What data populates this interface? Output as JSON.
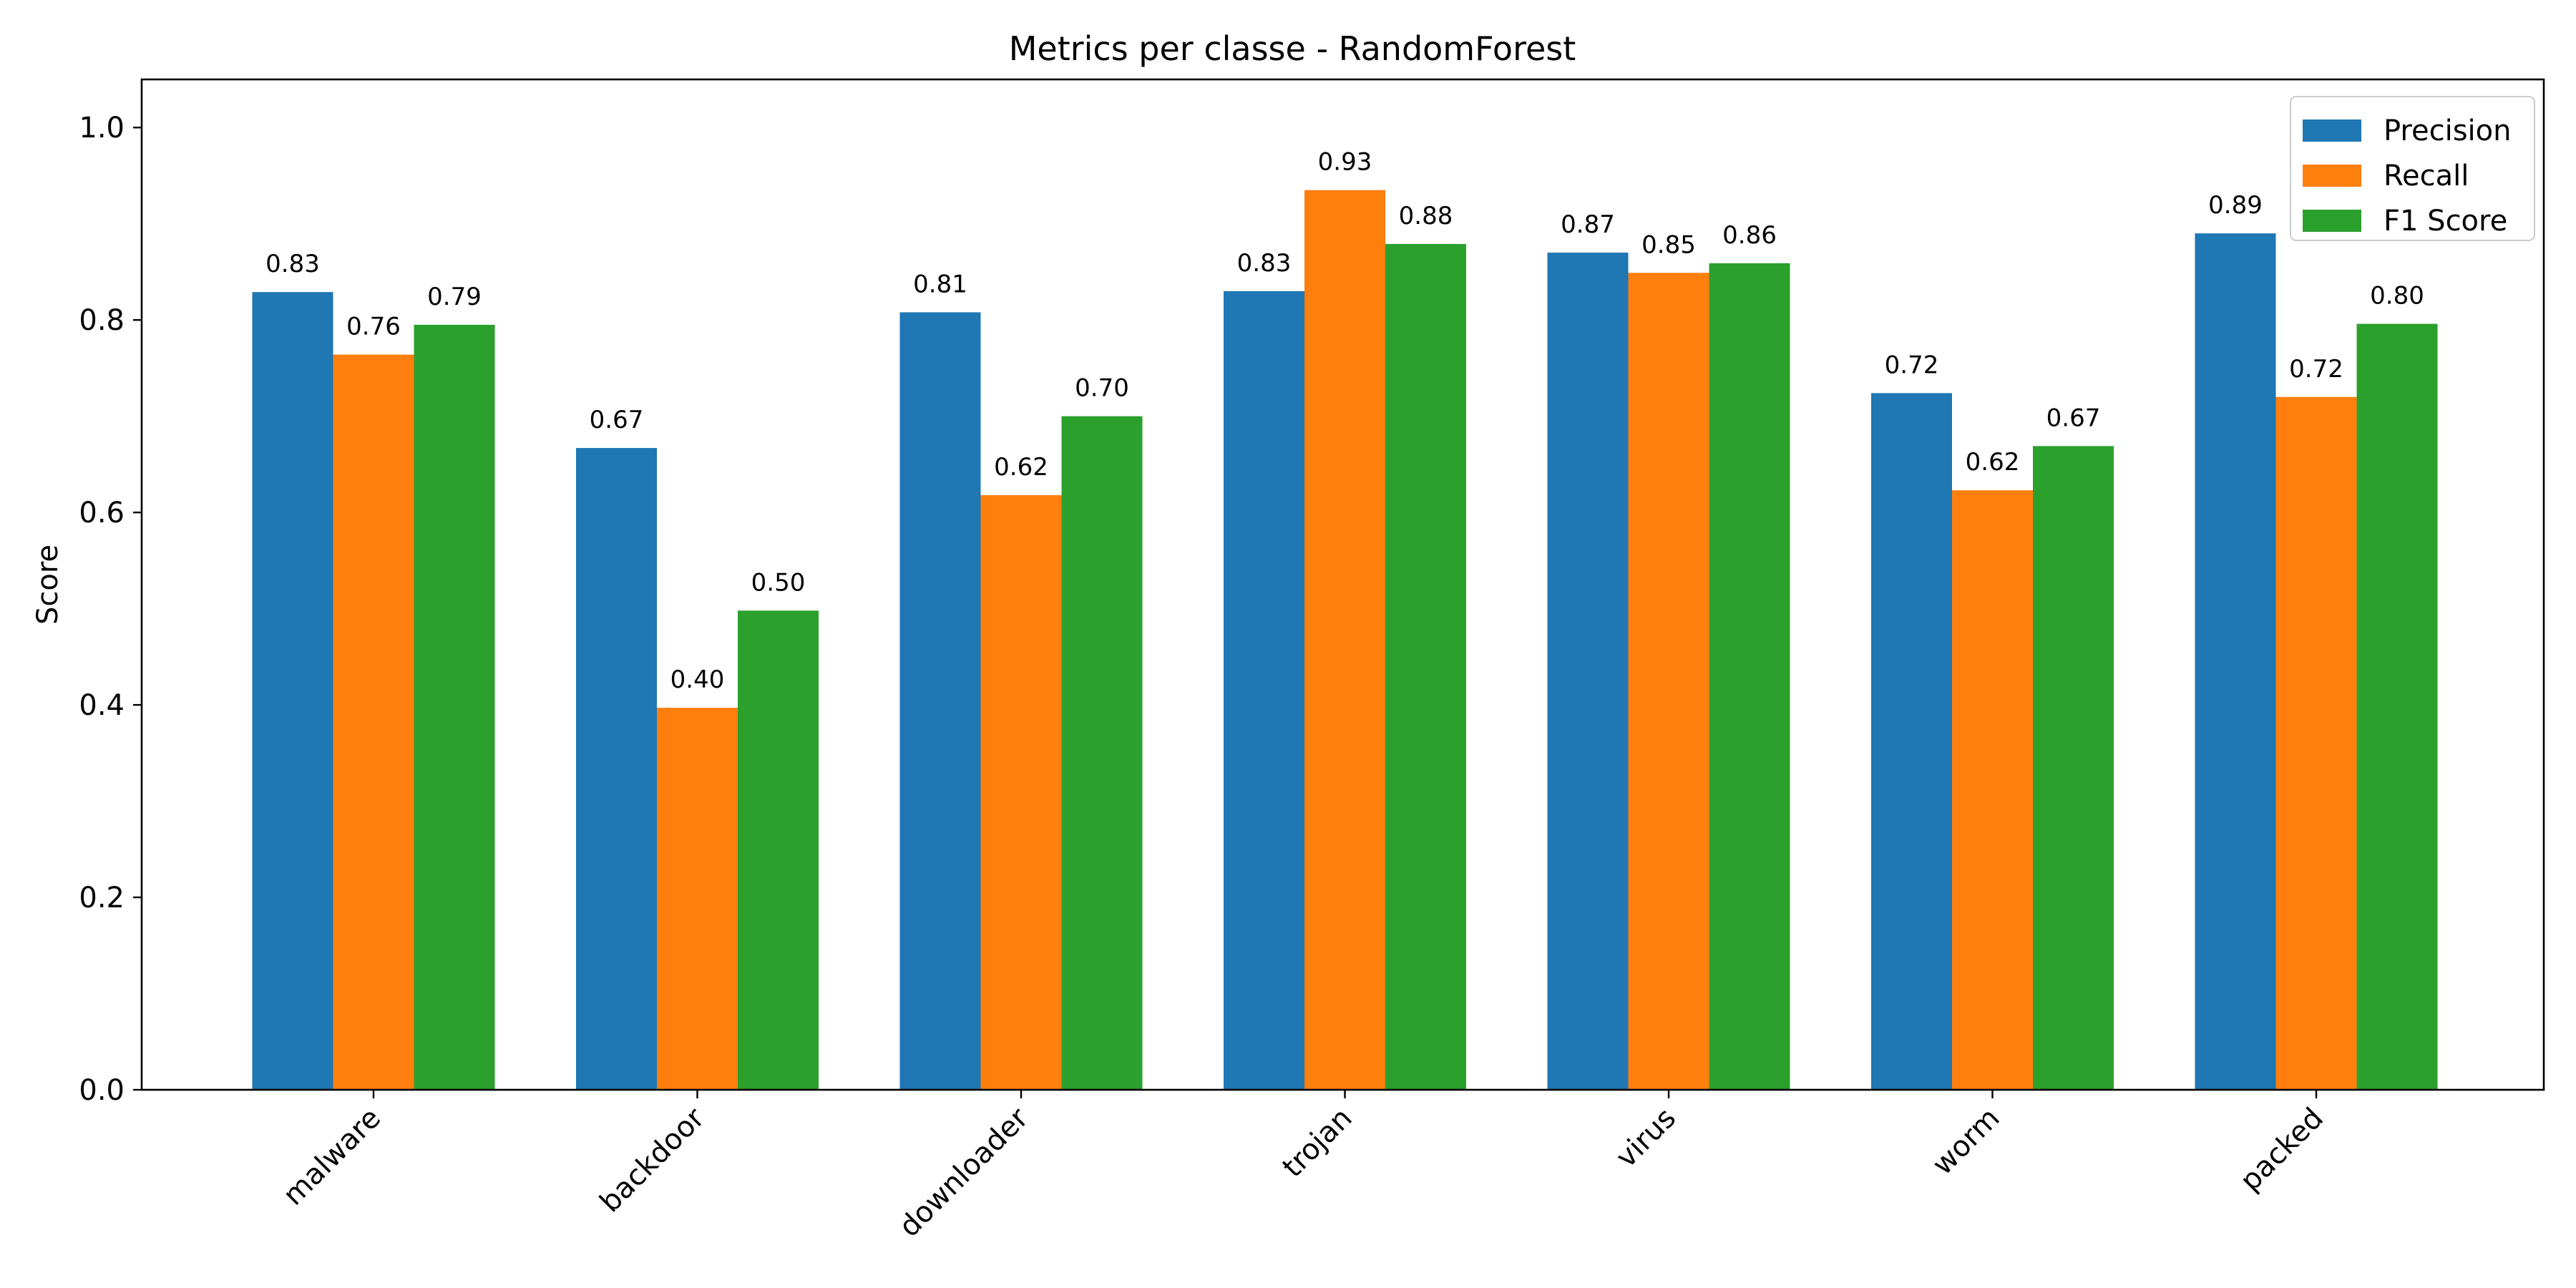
{
  "chart_data": {
    "type": "bar",
    "title": "Metrics per classe - RandomForest",
    "xlabel": "",
    "ylabel": "Score",
    "ylim": [
      0,
      1.05
    ],
    "yticks": [
      "0.0",
      "0.2",
      "0.4",
      "0.6",
      "0.8",
      "1.0"
    ],
    "categories": [
      "malware",
      "backdoor",
      "downloader",
      "trojan",
      "virus",
      "worm",
      "packed"
    ],
    "series": [
      {
        "name": "Precision",
        "color": "#1f77b4",
        "values": [
          0.829,
          0.667,
          0.808,
          0.83,
          0.87,
          0.724,
          0.89
        ],
        "labels": [
          "0.83",
          "0.67",
          "0.81",
          "0.83",
          "0.87",
          "0.72",
          "0.89"
        ]
      },
      {
        "name": "Recall",
        "color": "#ff7f0e",
        "values": [
          0.764,
          0.397,
          0.618,
          0.935,
          0.849,
          0.623,
          0.72
        ],
        "labels": [
          "0.76",
          "0.40",
          "0.62",
          "0.93",
          "0.85",
          "0.62",
          "0.72"
        ]
      },
      {
        "name": "F1 Score",
        "color": "#2ca02c",
        "values": [
          0.795,
          0.498,
          0.7,
          0.879,
          0.859,
          0.669,
          0.796
        ],
        "labels": [
          "0.79",
          "0.50",
          "0.70",
          "0.88",
          "0.86",
          "0.67",
          "0.80"
        ]
      }
    ],
    "legend_position": "top-right",
    "grid": false
  }
}
